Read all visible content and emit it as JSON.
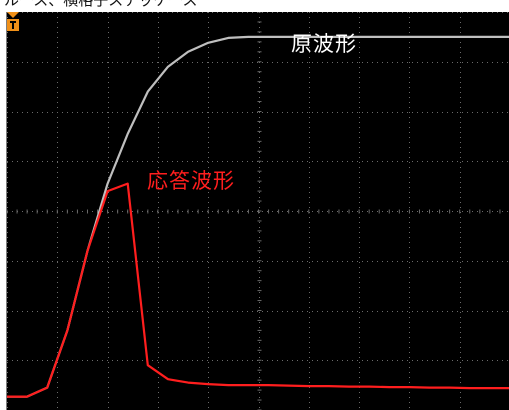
{
  "header": {
    "caption": "ルース、横格子ステッケース"
  },
  "scope": {
    "background_color": "#000000",
    "grid_color": "#6b6b6b",
    "trigger_marker": {
      "icon": "trigger-marker-icon",
      "glyph": "T",
      "color": "#f09018"
    }
  },
  "labels": {
    "original_waveform": "原波形",
    "response_waveform": "応答波形"
  },
  "chart_data": {
    "type": "line",
    "x": [
      0,
      0.4,
      0.8,
      1.2,
      1.6,
      2.0,
      2.4,
      2.8,
      3.2,
      3.6,
      4.0,
      4.4,
      4.8,
      5.2,
      5.6,
      6.0,
      6.4,
      6.8,
      7.2,
      7.6,
      8.0,
      8.4,
      8.8,
      9.2,
      9.6,
      10.0
    ],
    "series": [
      {
        "color": "#bfbfbf",
        "values": [
          0.27,
          0.27,
          0.45,
          1.6,
          3.2,
          4.55,
          5.55,
          6.4,
          6.9,
          7.2,
          7.38,
          7.48,
          7.5,
          7.5,
          7.5,
          7.5,
          7.5,
          7.5,
          7.5,
          7.5,
          7.5,
          7.5,
          7.5,
          7.5,
          7.5,
          7.5
        ]
      },
      {
        "color": "#ff1e1e",
        "values": [
          0.27,
          0.27,
          0.45,
          1.6,
          3.2,
          4.4,
          4.55,
          0.9,
          0.62,
          0.55,
          0.52,
          0.5,
          0.5,
          0.5,
          0.49,
          0.48,
          0.48,
          0.47,
          0.47,
          0.46,
          0.46,
          0.45,
          0.45,
          0.44,
          0.44,
          0.44
        ]
      }
    ],
    "xlim": [
      0,
      10
    ],
    "ylim": [
      0,
      8
    ],
    "grid": true
  }
}
